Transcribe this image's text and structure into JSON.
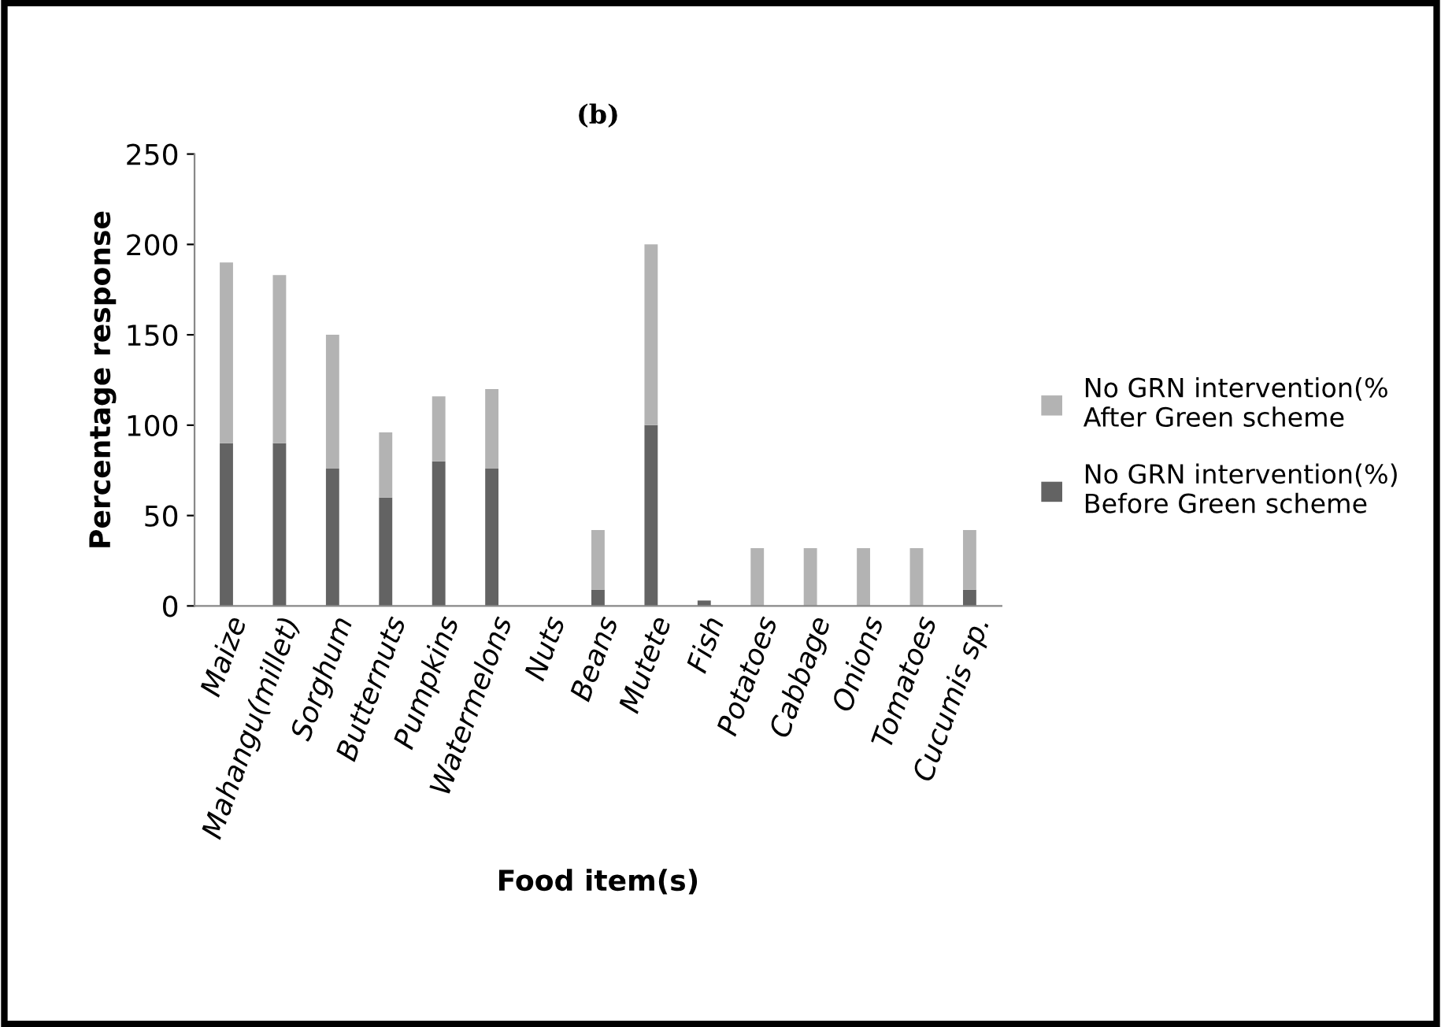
{
  "chart_data": {
    "type": "bar",
    "title": "(b)",
    "xlabel": "Food item(s)",
    "ylabel": "Percentage response",
    "categories": [
      "Maize",
      "Mahangu(millet)",
      "Sorghum",
      "Butternuts",
      "Pumpkins",
      "Watermelons",
      "Nuts",
      "Beans",
      "Mutete",
      "Fish",
      "Potatoes",
      "Cabbage",
      "Onions",
      "Tomatoes",
      "Cucumis sp."
    ],
    "stacked": true,
    "series": [
      {
        "name": "No GRN intervention(%)\nBefore Green scheme",
        "color": "#636363",
        "values": [
          90,
          90,
          76,
          60,
          80,
          76,
          0,
          9,
          100,
          3,
          0,
          0,
          0,
          0,
          9
        ]
      },
      {
        "name": "No GRN intervention(%\nAfter Green scheme",
        "color": "#b3b3b3",
        "values": [
          100,
          93,
          74,
          36,
          36,
          44,
          0,
          33,
          100,
          0,
          32,
          32,
          32,
          32,
          33
        ]
      }
    ],
    "ylim": [
      0,
      250
    ],
    "yticks": [
      0,
      50,
      100,
      150,
      200,
      250
    ],
    "grid": false,
    "legend": "right"
  }
}
